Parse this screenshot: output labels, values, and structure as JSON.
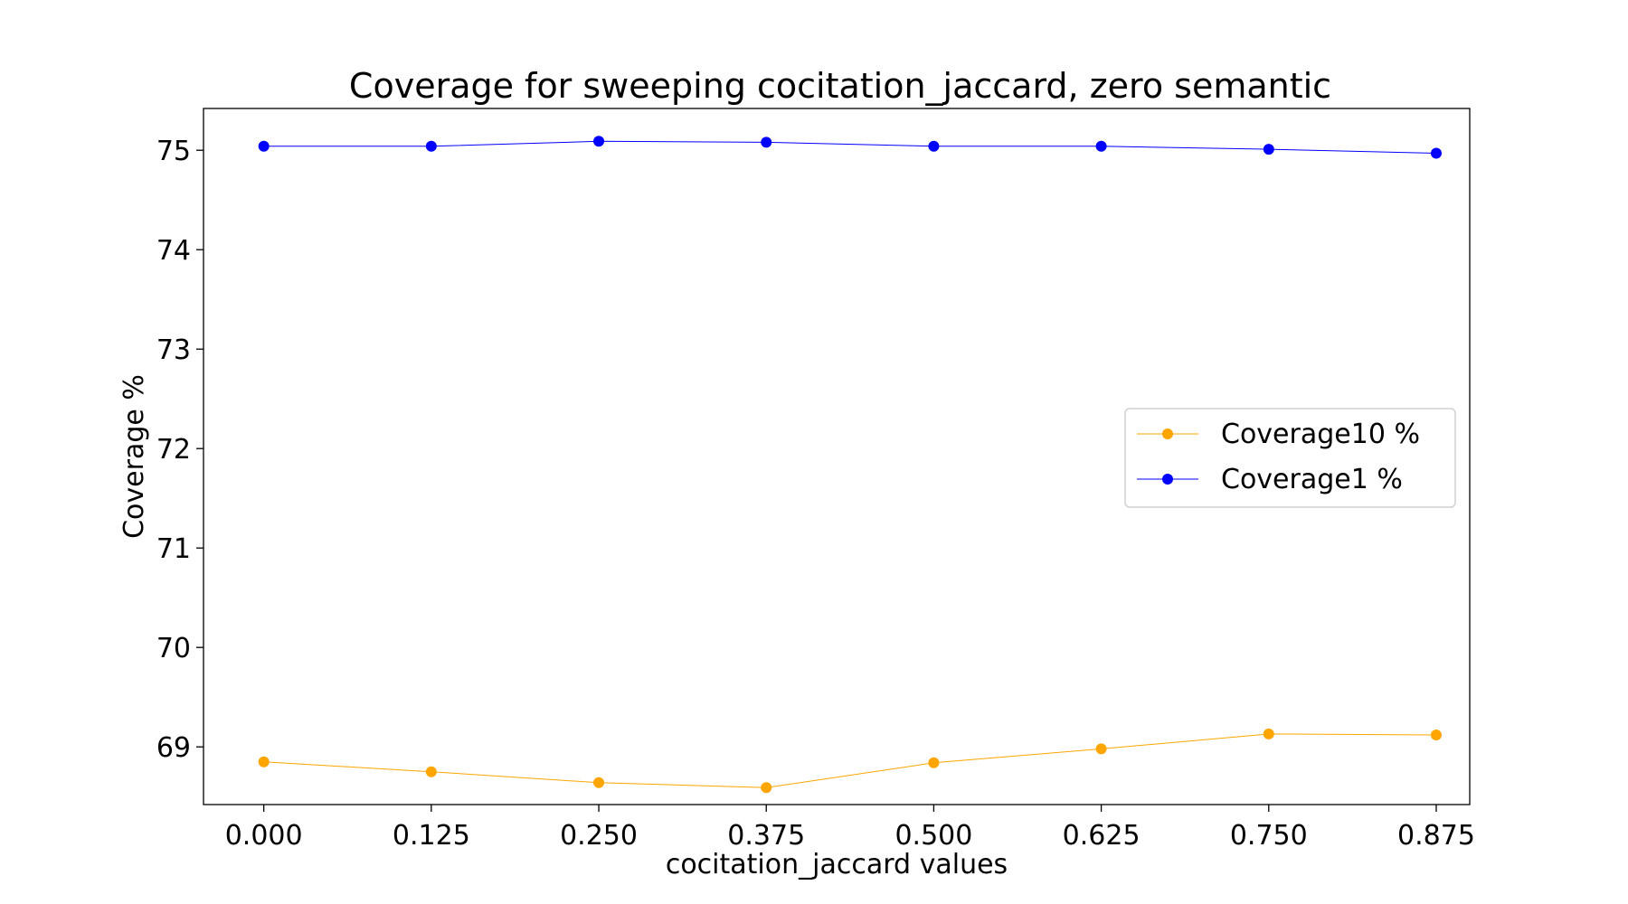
{
  "chart_data": {
    "type": "line",
    "title": "Coverage for sweeping cocitation_jaccard, zero semantic",
    "xlabel": "cocitation_jaccard values",
    "ylabel": "Coverage %",
    "x": [
      0.0,
      0.125,
      0.25,
      0.375,
      0.5,
      0.625,
      0.75,
      0.875
    ],
    "xticks": [
      "0.000",
      "0.125",
      "0.250",
      "0.375",
      "0.500",
      "0.625",
      "0.750",
      "0.875"
    ],
    "yticks": [
      "69",
      "70",
      "71",
      "72",
      "73",
      "74",
      "75"
    ],
    "xlim": [
      -0.045,
      0.9
    ],
    "ylim": [
      68.42,
      75.42
    ],
    "grid": false,
    "legend_position": "center-right",
    "series": [
      {
        "name": "Coverage10 %",
        "color": "#FFA500",
        "values": [
          68.85,
          68.75,
          68.64,
          68.59,
          68.84,
          68.98,
          69.13,
          69.12
        ]
      },
      {
        "name": "Coverage1 %",
        "color": "#0000FF",
        "values": [
          75.04,
          75.04,
          75.09,
          75.08,
          75.04,
          75.04,
          75.01,
          74.97
        ]
      }
    ]
  }
}
